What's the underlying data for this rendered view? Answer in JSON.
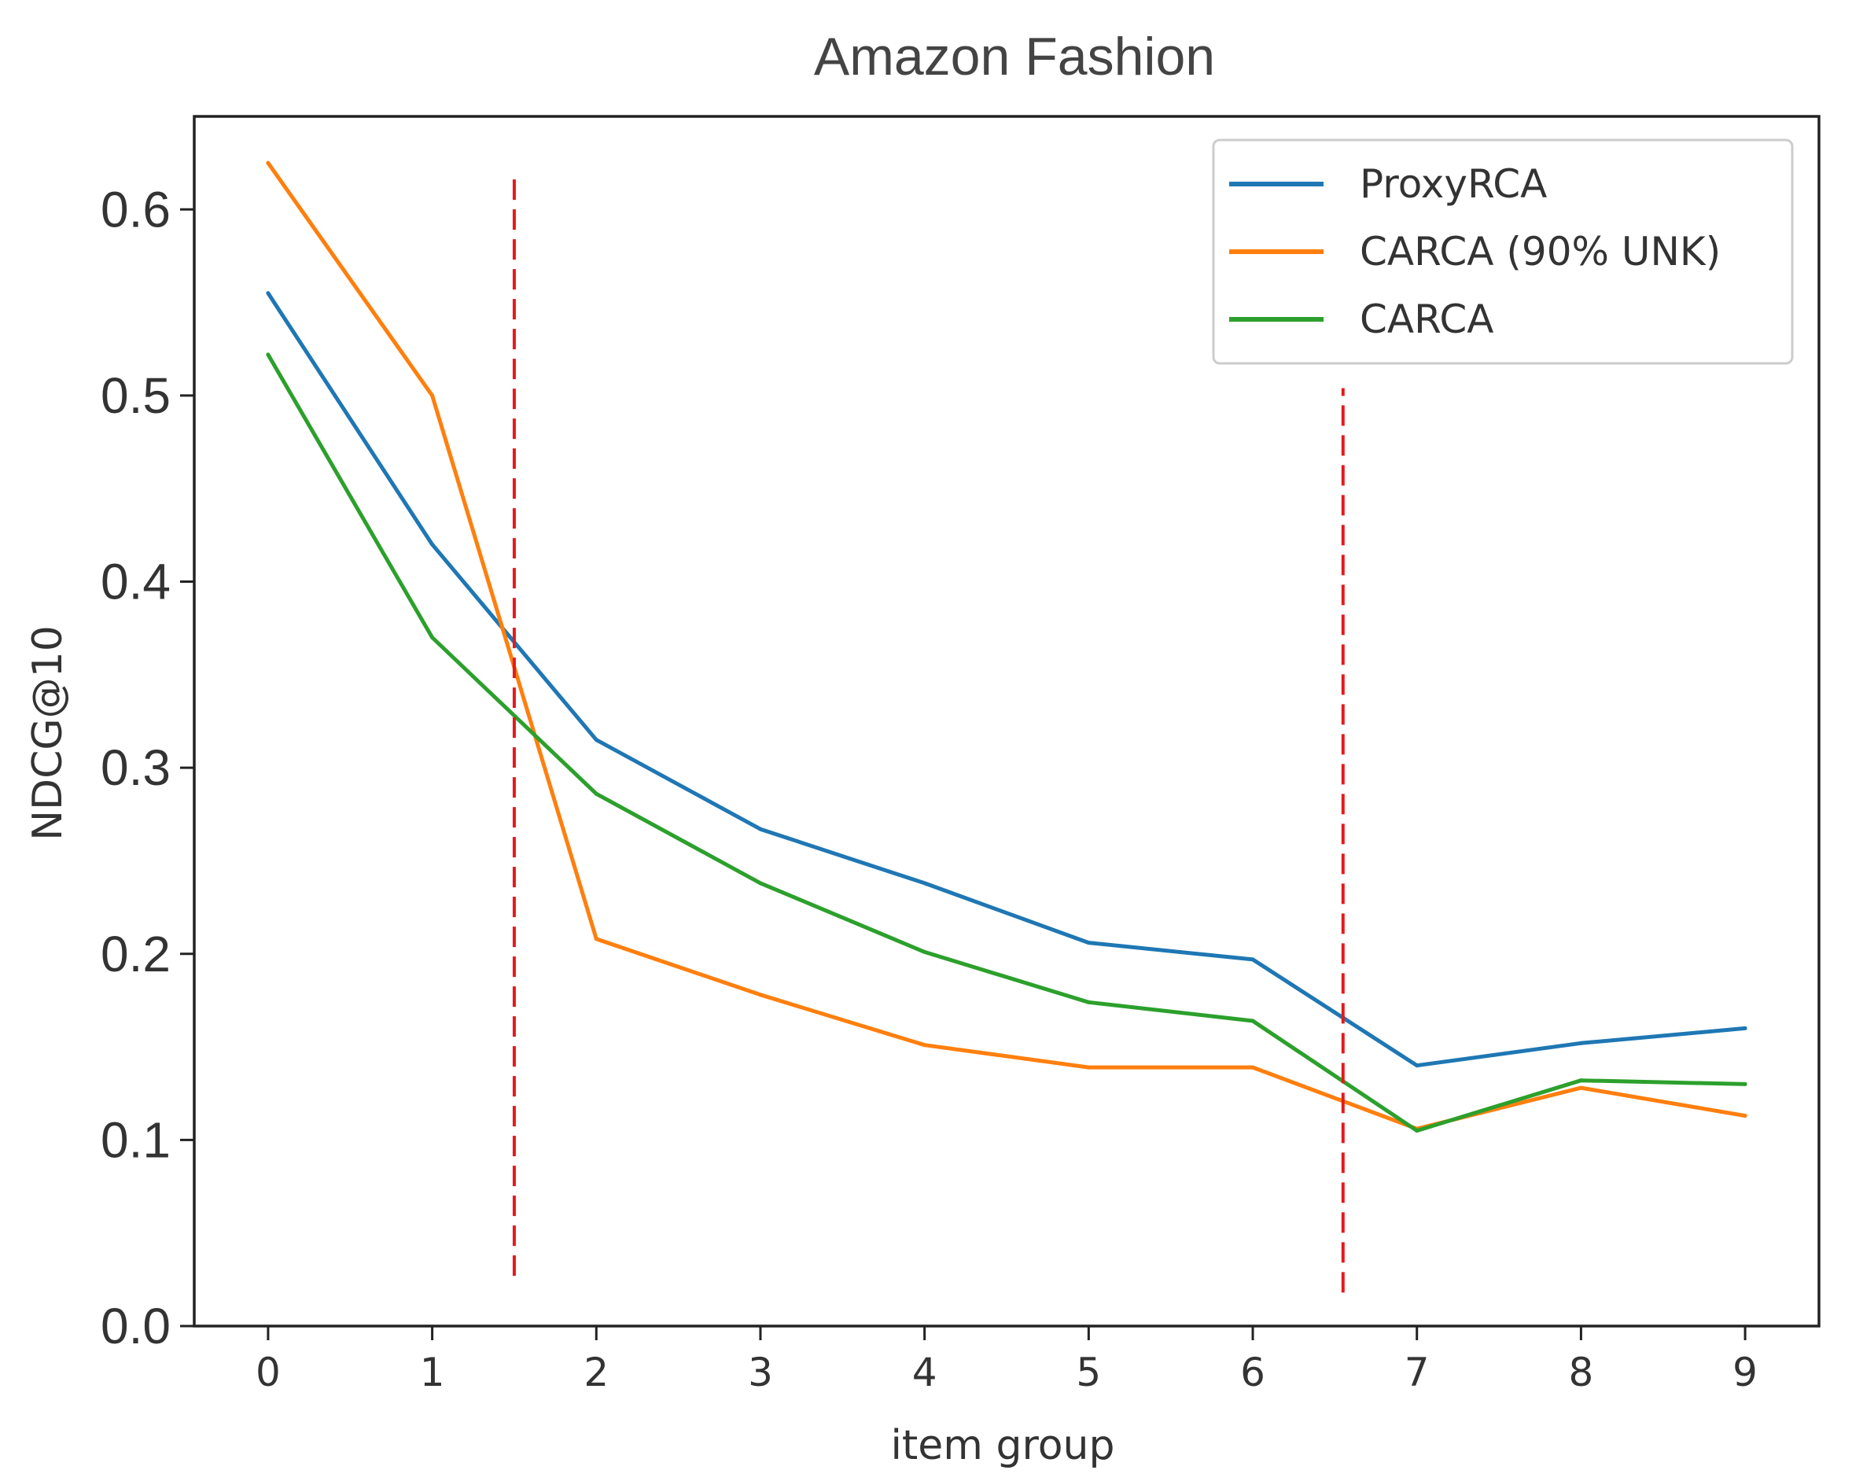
{
  "chart_data": {
    "type": "line",
    "title": "Amazon Fashion",
    "xlabel": "item group",
    "ylabel": "NDCG@10",
    "x": [
      0,
      1,
      2,
      3,
      4,
      5,
      6,
      7,
      8,
      9
    ],
    "xticks": [
      "0",
      "1",
      "2",
      "3",
      "4",
      "5",
      "6",
      "7",
      "8",
      "9"
    ],
    "xlim": [
      -0.45,
      9.45
    ],
    "ylim": [
      0.0,
      0.65
    ],
    "yticks": [
      "0.0",
      "0.1",
      "0.2",
      "0.3",
      "0.4",
      "0.5",
      "0.6"
    ],
    "grid": false,
    "legend_position": "top-right",
    "series": [
      {
        "name": "ProxyRCA",
        "color": "#1f77b4",
        "values": [
          0.555,
          0.42,
          0.315,
          0.267,
          0.238,
          0.206,
          0.197,
          0.14,
          0.152,
          0.16
        ]
      },
      {
        "name": "CARCA (90% UNK)",
        "color": "#ff7f0e",
        "values": [
          0.625,
          0.5,
          0.208,
          0.178,
          0.151,
          0.139,
          0.139,
          0.106,
          0.128,
          0.113
        ]
      },
      {
        "name": "CARCA",
        "color": "#2ca02c",
        "values": [
          0.522,
          0.37,
          0.286,
          0.238,
          0.201,
          0.174,
          0.164,
          0.105,
          0.132,
          0.13
        ]
      }
    ],
    "annotations": [
      {
        "type": "vline",
        "x": 1.5,
        "y_from": 0.027,
        "y_to": 0.62,
        "color": "#e31a1c",
        "style": "dashed"
      },
      {
        "type": "vline",
        "x": 6.55,
        "y_from": 0.018,
        "y_to": 0.504,
        "color": "#e31a1c",
        "style": "dashed"
      }
    ]
  }
}
